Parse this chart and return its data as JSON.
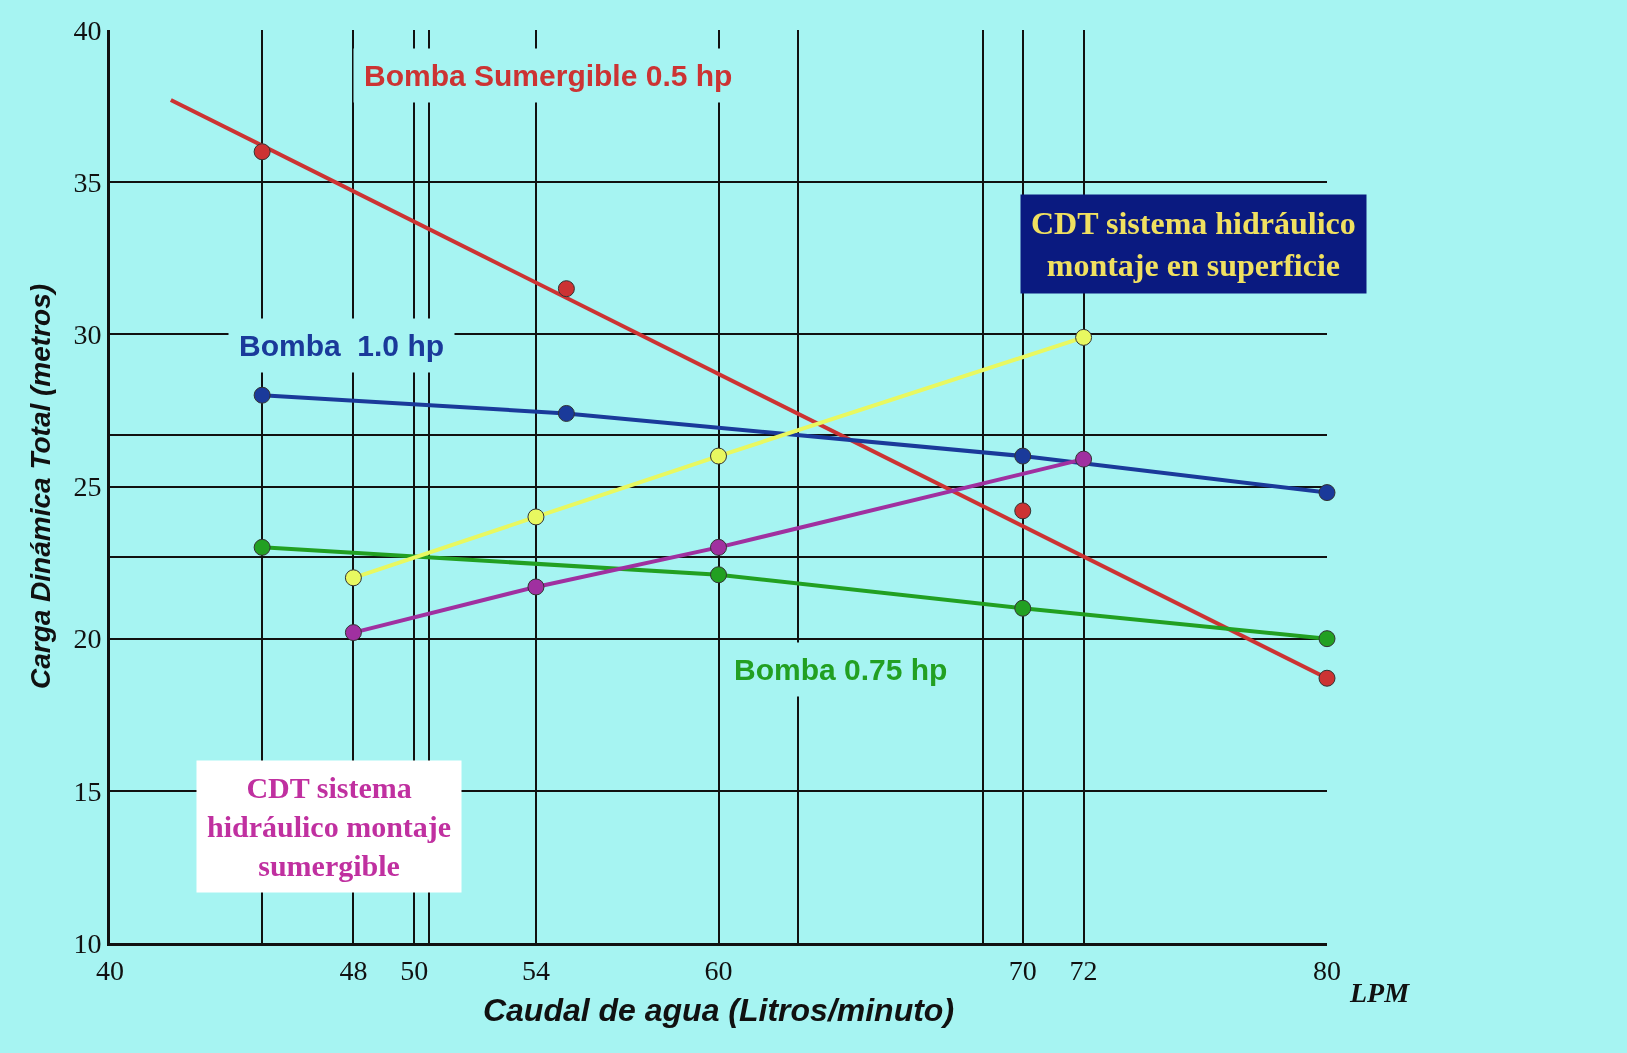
{
  "chart_data": {
    "type": "line",
    "xlabel": "Caudal de agua (Litros/minuto)",
    "ylabel": "Carga Dinámica Total (metros)",
    "xlim": [
      40,
      80
    ],
    "ylim": [
      10,
      40
    ],
    "xticks": [
      40,
      {
        "value": 45,
        "label": null
      },
      48,
      50,
      {
        "value": 50.5,
        "label": null
      },
      54,
      60,
      {
        "value": 62.6,
        "label": null
      },
      {
        "value": 68.7,
        "label": null
      },
      70,
      72,
      80
    ],
    "yticks": [
      10,
      15,
      20,
      {
        "value": 22.7,
        "label": null
      },
      25,
      {
        "value": 26.7,
        "label": null
      },
      30,
      35,
      40
    ],
    "grid": true,
    "legend": false,
    "marker": "circle",
    "line_style": "solid",
    "annotations": [
      "LPM"
    ],
    "series": [
      {
        "name": "Bomba Sumergible 0.5 hp",
        "color": "#cc3333",
        "type": "line",
        "marker": "none",
        "x": [
          42,
          80
        ],
        "values": [
          37.7,
          18.7
        ]
      },
      {
        "color": "#cc3333",
        "type": "scatter",
        "x": [
          45,
          55,
          70,
          80
        ],
        "values": [
          36,
          31.5,
          24.2,
          18.7
        ]
      },
      {
        "name": "Bomba  1.0 hp",
        "color": "#1a3a9a",
        "x": [
          45,
          55,
          70,
          80
        ],
        "values": [
          28,
          27.4,
          26,
          24.8
        ]
      },
      {
        "name": "Bomba 0.75 hp",
        "color": "#22a022",
        "x": [
          45,
          60,
          70,
          80
        ],
        "values": [
          23,
          22.1,
          21,
          20
        ]
      },
      {
        "name": "CDT sistema hidráulico montaje en superficie",
        "color": "#e8f860",
        "x": [
          48,
          54,
          60,
          72
        ],
        "values": [
          22,
          24,
          26,
          29.9
        ]
      },
      {
        "name": "CDT sistema hidráulico montaje sumergible",
        "color": "#a030a0",
        "x": [
          48,
          54,
          60,
          72
        ],
        "values": [
          20.2,
          21.7,
          23,
          25.9
        ]
      }
    ]
  }
}
